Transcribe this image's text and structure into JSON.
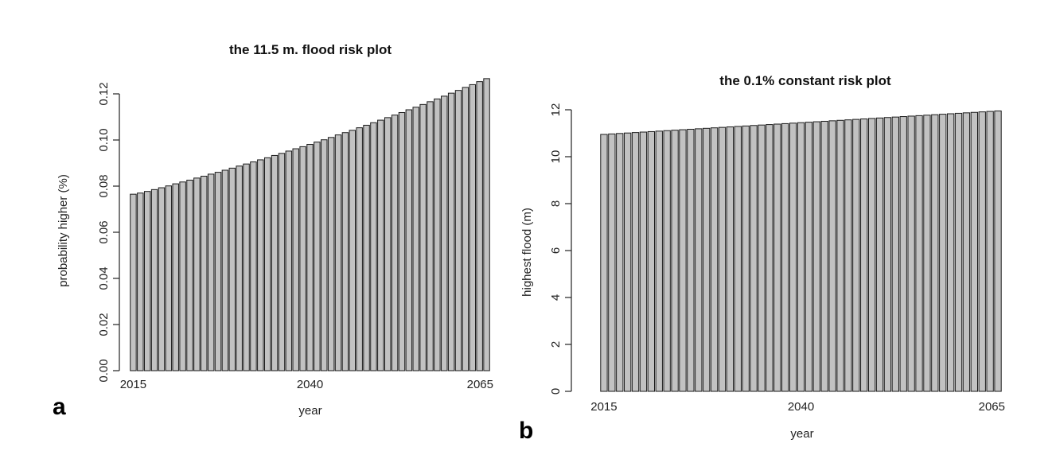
{
  "chart_data": [
    {
      "type": "bar",
      "panel": "a",
      "title": "the 11.5 m. flood risk plot",
      "xlabel": "year",
      "ylabel": "probability higher (%)",
      "x": [
        2015,
        2016,
        2017,
        2018,
        2019,
        2020,
        2021,
        2022,
        2023,
        2024,
        2025,
        2026,
        2027,
        2028,
        2029,
        2030,
        2031,
        2032,
        2033,
        2034,
        2035,
        2036,
        2037,
        2038,
        2039,
        2040,
        2041,
        2042,
        2043,
        2044,
        2045,
        2046,
        2047,
        2048,
        2049,
        2050,
        2051,
        2052,
        2053,
        2054,
        2055,
        2056,
        2057,
        2058,
        2059,
        2060,
        2061,
        2062,
        2063,
        2064,
        2065
      ],
      "values": [
        0.0765,
        0.077,
        0.0777,
        0.0785,
        0.0793,
        0.0801,
        0.081,
        0.0818,
        0.0826,
        0.0835,
        0.0843,
        0.0852,
        0.086,
        0.0869,
        0.0878,
        0.0887,
        0.0896,
        0.0905,
        0.0914,
        0.0923,
        0.0933,
        0.0942,
        0.0952,
        0.0962,
        0.0971,
        0.0981,
        0.0991,
        0.1001,
        0.1011,
        0.1022,
        0.1032,
        0.1042,
        0.1053,
        0.1064,
        0.1075,
        0.1086,
        0.1097,
        0.1108,
        0.1119,
        0.1131,
        0.1142,
        0.1154,
        0.1166,
        0.1178,
        0.119,
        0.1203,
        0.1215,
        0.1228,
        0.124,
        0.1253,
        0.1266
      ],
      "xticks": [
        "2015",
        "2040",
        "2065"
      ],
      "yticks": [
        "0.00",
        "0.02",
        "0.04",
        "0.06",
        "0.08",
        "0.10",
        "0.12"
      ],
      "ylim": [
        0,
        0.12
      ],
      "grid": false,
      "legend": "none"
    },
    {
      "type": "bar",
      "panel": "b",
      "title": "the 0.1% constant risk plot",
      "xlabel": "year",
      "ylabel": "highest flood (m)",
      "x": [
        2015,
        2016,
        2017,
        2018,
        2019,
        2020,
        2021,
        2022,
        2023,
        2024,
        2025,
        2026,
        2027,
        2028,
        2029,
        2030,
        2031,
        2032,
        2033,
        2034,
        2035,
        2036,
        2037,
        2038,
        2039,
        2040,
        2041,
        2042,
        2043,
        2044,
        2045,
        2046,
        2047,
        2048,
        2049,
        2050,
        2051,
        2052,
        2053,
        2054,
        2055,
        2056,
        2057,
        2058,
        2059,
        2060,
        2061,
        2062,
        2063,
        2064,
        2065
      ],
      "values": [
        10.95,
        10.97,
        10.99,
        11.01,
        11.03,
        11.05,
        11.07,
        11.09,
        11.11,
        11.13,
        11.15,
        11.17,
        11.19,
        11.21,
        11.23,
        11.25,
        11.27,
        11.29,
        11.31,
        11.33,
        11.35,
        11.37,
        11.39,
        11.41,
        11.43,
        11.45,
        11.47,
        11.49,
        11.51,
        11.53,
        11.55,
        11.57,
        11.59,
        11.61,
        11.63,
        11.65,
        11.67,
        11.69,
        11.71,
        11.73,
        11.75,
        11.77,
        11.79,
        11.81,
        11.83,
        11.85,
        11.87,
        11.89,
        11.91,
        11.93,
        11.95
      ],
      "xticks": [
        "2015",
        "2040",
        "2065"
      ],
      "yticks": [
        "0",
        "2",
        "4",
        "6",
        "8",
        "10",
        "12"
      ],
      "ylim": [
        0,
        12
      ],
      "grid": false,
      "legend": "none"
    }
  ],
  "bar_color": "#c2c2c2",
  "edge_color": "#1a1a1a"
}
